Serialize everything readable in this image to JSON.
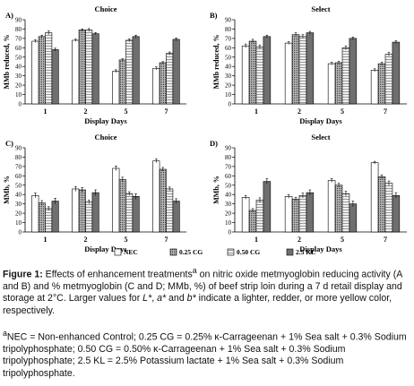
{
  "patterns": {
    "NEC": {
      "fill": "#ffffff",
      "kind": "white"
    },
    "0.25 CG": {
      "fill": "#8c8c8c",
      "kind": "dots"
    },
    "0.50 CG": {
      "fill": "#d2d2d2",
      "kind": "hatch"
    },
    "2.5 KL": {
      "fill": "#6f6f6f",
      "kind": "solid"
    }
  },
  "legend": [
    "NEC",
    "0.25 CG",
    "0.50 CG",
    "2.5 KL"
  ],
  "chart_data": [
    {
      "panel": "A)",
      "type": "bar",
      "title": "Choice",
      "xlabel": "Display Days",
      "ylabel": "MMb reduced, %",
      "categories": [
        "1",
        "2",
        "5",
        "7"
      ],
      "ylim": [
        0,
        90
      ],
      "yticks": [
        0,
        10,
        20,
        30,
        40,
        50,
        60,
        70,
        80,
        90
      ],
      "series": [
        {
          "name": "NEC",
          "values": [
            67,
            68,
            35,
            38
          ],
          "errors": [
            1.5,
            1.2,
            1.5,
            1.5
          ]
        },
        {
          "name": "0.25 CG",
          "values": [
            72,
            79,
            47,
            44
          ],
          "errors": [
            1.5,
            1.2,
            1.2,
            1.2
          ]
        },
        {
          "name": "0.50 CG",
          "values": [
            76,
            79,
            68,
            54
          ],
          "errors": [
            2,
            1.5,
            1.5,
            1.5
          ]
        },
        {
          "name": "2.5 KL",
          "values": [
            58,
            75,
            72,
            69
          ],
          "errors": [
            1.5,
            1.2,
            1.5,
            1.5
          ]
        }
      ]
    },
    {
      "panel": "B)",
      "type": "bar",
      "title": "Select",
      "xlabel": "Display Days",
      "ylabel": "MMb reduced, %",
      "categories": [
        "1",
        "2",
        "5",
        "7"
      ],
      "ylim": [
        0,
        90
      ],
      "yticks": [
        0,
        10,
        20,
        30,
        40,
        50,
        60,
        70,
        80,
        90
      ],
      "series": [
        {
          "name": "NEC",
          "values": [
            62,
            65,
            43,
            36
          ],
          "errors": [
            2,
            1.5,
            1.5,
            1.5
          ]
        },
        {
          "name": "0.25 CG",
          "values": [
            67,
            74,
            44,
            43
          ],
          "errors": [
            2,
            2,
            1.5,
            1.5
          ]
        },
        {
          "name": "0.50 CG",
          "values": [
            61,
            72,
            60,
            53
          ],
          "errors": [
            2,
            2,
            2,
            2
          ]
        },
        {
          "name": "2.5 KL",
          "values": [
            72,
            76,
            70,
            66
          ],
          "errors": [
            1.5,
            1.5,
            1.5,
            1.5
          ]
        }
      ]
    },
    {
      "panel": "C)",
      "type": "bar",
      "title": "Choice",
      "xlabel": "Display Days",
      "ylabel": "MMb, %",
      "categories": [
        "1",
        "2",
        "5",
        "7"
      ],
      "ylim": [
        0,
        90
      ],
      "yticks": [
        0,
        10,
        20,
        30,
        40,
        50,
        60,
        70,
        80,
        90
      ],
      "series": [
        {
          "name": "NEC",
          "values": [
            39,
            46,
            68,
            76
          ],
          "errors": [
            2.5,
            2.5,
            2.5,
            2
          ]
        },
        {
          "name": "0.25 CG",
          "values": [
            31,
            45,
            56,
            67
          ],
          "errors": [
            2.5,
            2.5,
            2.5,
            2
          ]
        },
        {
          "name": "0.50 CG",
          "values": [
            25,
            32,
            41,
            46
          ],
          "errors": [
            2,
            2,
            2,
            2
          ]
        },
        {
          "name": "2.5 KL",
          "values": [
            33,
            42,
            38,
            33
          ],
          "errors": [
            3,
            3,
            3,
            2.5
          ]
        }
      ]
    },
    {
      "panel": "D)",
      "type": "bar",
      "title": "Select",
      "xlabel": "Display Days",
      "ylabel": "MMb, %",
      "categories": [
        "1",
        "2",
        "5",
        "7"
      ],
      "ylim": [
        0,
        90
      ],
      "yticks": [
        0,
        10,
        20,
        30,
        40,
        50,
        60,
        70,
        80,
        90
      ],
      "series": [
        {
          "name": "NEC",
          "values": [
            37,
            38,
            55,
            74
          ],
          "errors": [
            2,
            2,
            2,
            1.5
          ]
        },
        {
          "name": "0.25 CG",
          "values": [
            23,
            35,
            50,
            59
          ],
          "errors": [
            2,
            2,
            2,
            2
          ]
        },
        {
          "name": "0.50 CG",
          "values": [
            34,
            39,
            41,
            52
          ],
          "errors": [
            2.5,
            2.5,
            2.5,
            2.5
          ]
        },
        {
          "name": "2.5 KL",
          "values": [
            54,
            42,
            30,
            39
          ],
          "errors": [
            3,
            3,
            3,
            3
          ]
        }
      ]
    }
  ],
  "caption": {
    "label": "Figure 1:",
    "part1": " Effects of enhancement treatments",
    "sup_a": "a",
    "part2": " on nitric oxide metmyoglobin reducing activity (A and B) and % metmyoglobin (C and D; MMb, %) of beef strip loin during a 7 d retail display and storage at 2°C. Larger values for ",
    "L": "L*",
    "sep1": ", ",
    "a_star": "a*",
    "sep2": " and ",
    "b_star": "b*",
    "part3": " indicate a lighter, redder, or more yellow color, respectively."
  },
  "footnote": {
    "sup": "a",
    "text": "NEC = Non-enhanced Control; 0.25 CG = 0.25% κ-Carrageenan + 1% Sea salt + 0.3% Sodium tripolyphosphate; 0.50 CG = 0.50% κ-Carrageenan + 1% Sea salt + 0.3% Sodium tripolyphosphate; 2.5 KL = 2.5% Potassium lactate + 1% Sea salt + 0.3% Sodium tripolyphosphate."
  }
}
